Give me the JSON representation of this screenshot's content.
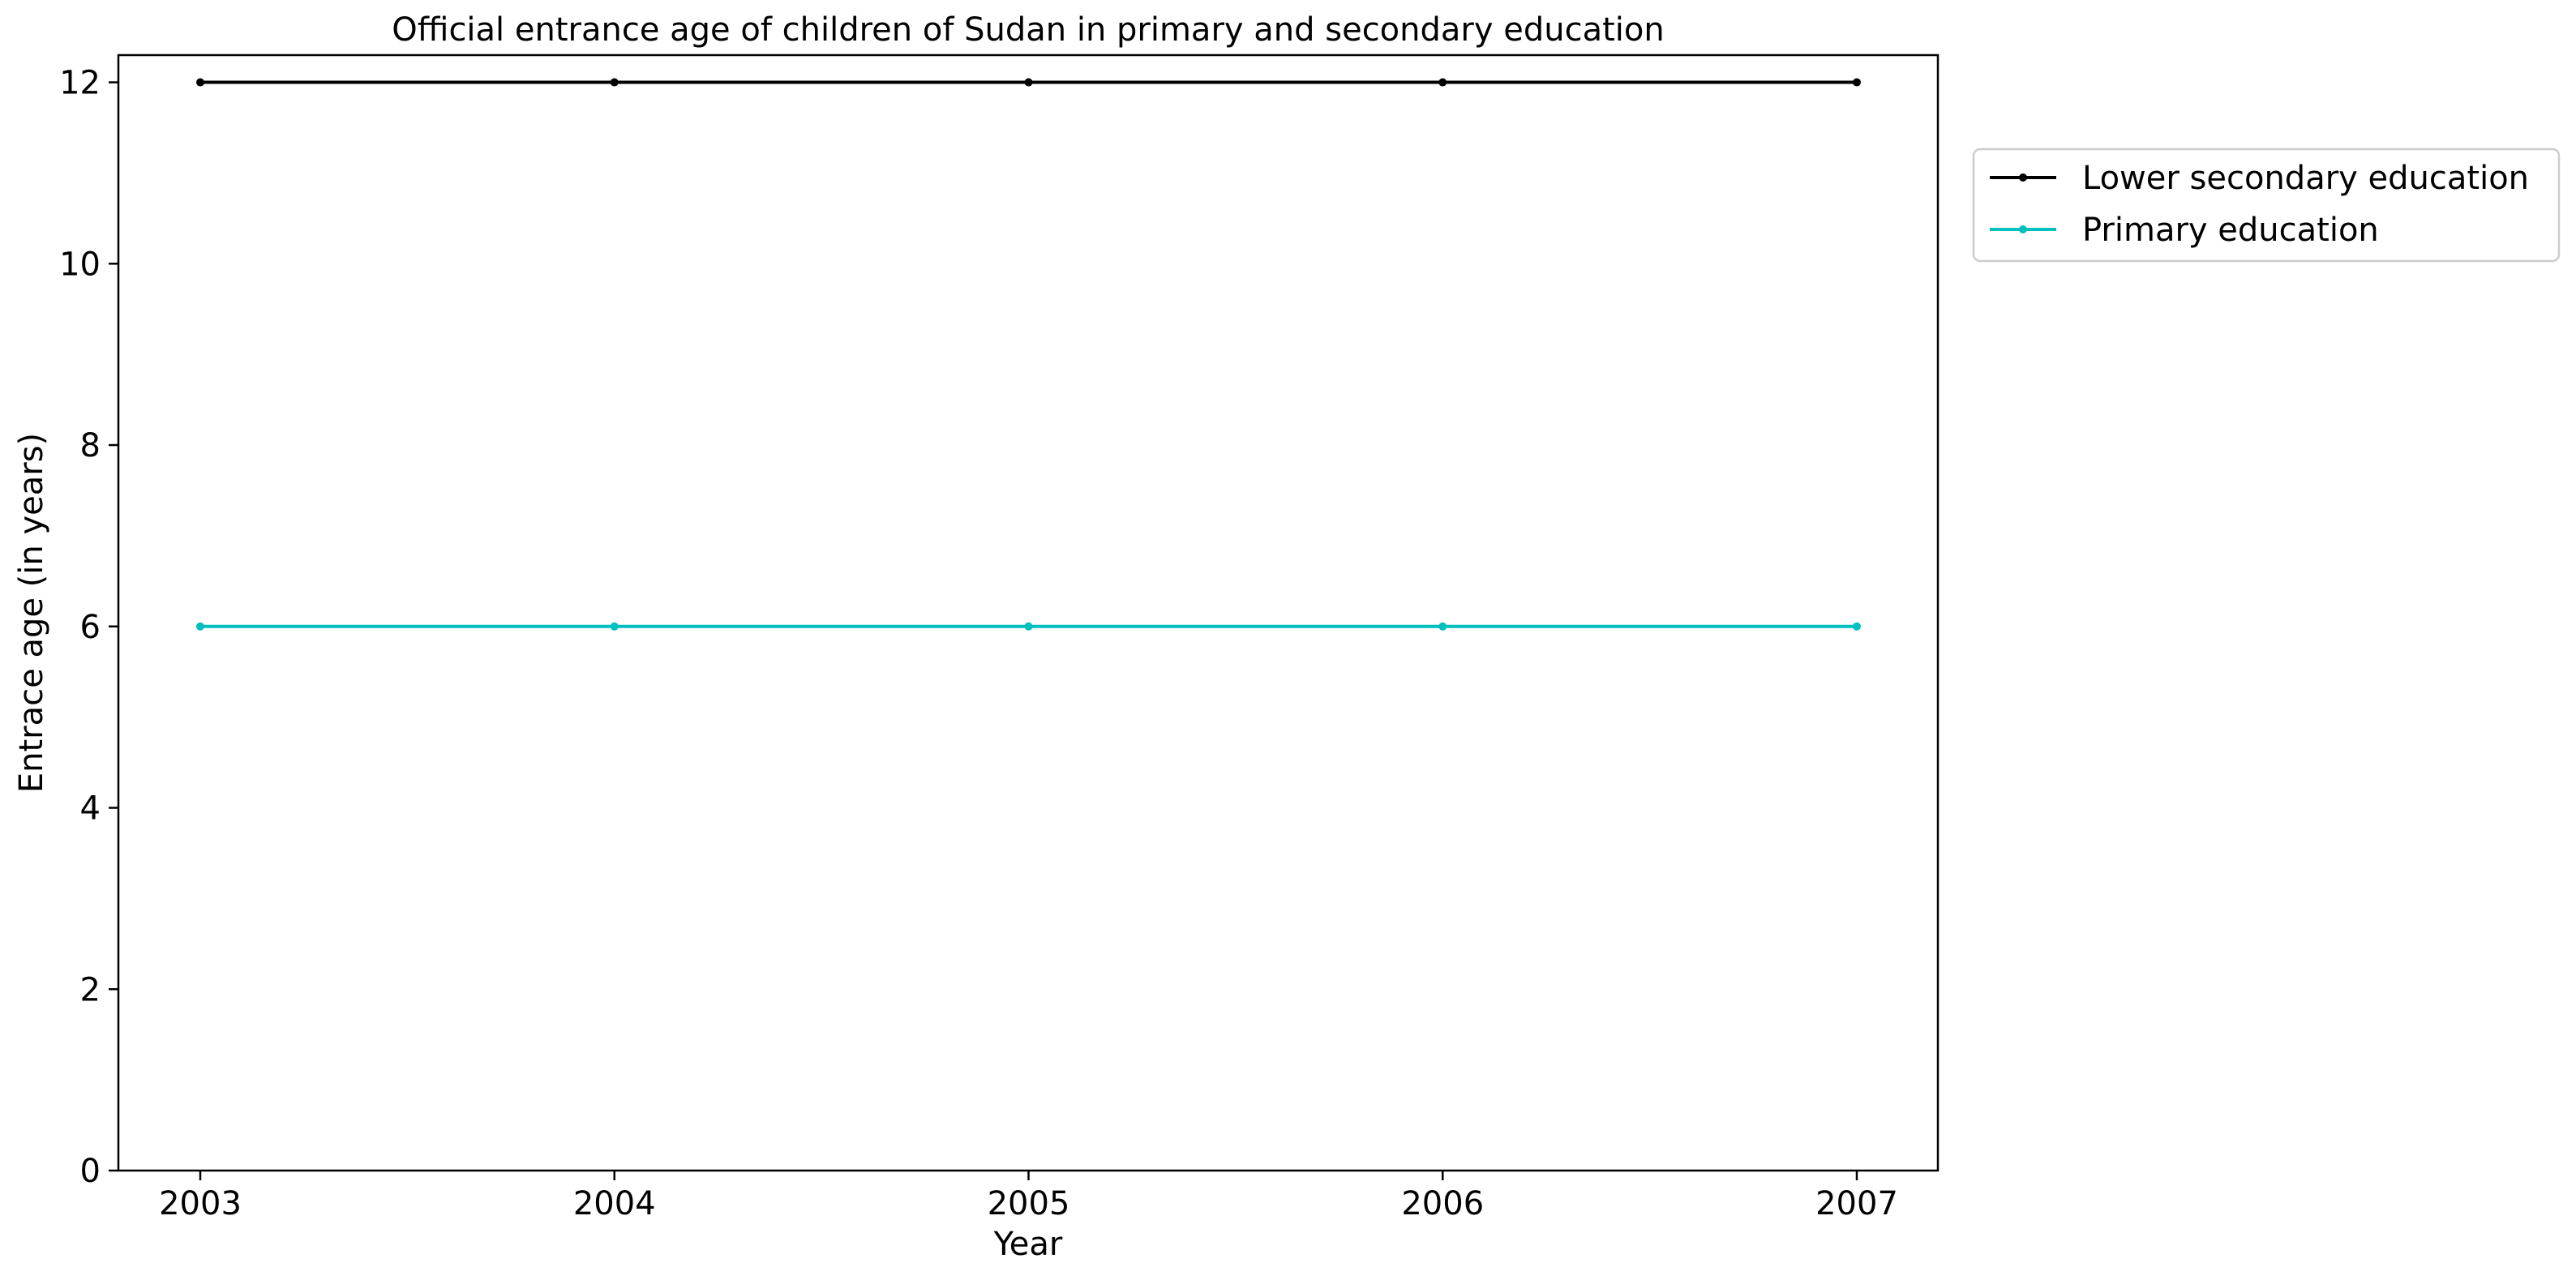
{
  "chart_data": {
    "type": "line",
    "title": "Official entrance age of children of Sudan in primary and secondary education",
    "xlabel": "Year",
    "ylabel": "Entrace age (in  years)",
    "x": [
      "2003",
      "2004",
      "2005",
      "2006",
      "2007"
    ],
    "yticks": [
      "0",
      "2",
      "4",
      "6",
      "8",
      "10",
      "12"
    ],
    "ylim": [
      0,
      12.3
    ],
    "grid": false,
    "legend_position": "outside-top-right",
    "series": [
      {
        "name": "Lower secondary education",
        "values": [
          12,
          12,
          12,
          12,
          12
        ],
        "color": "#000000"
      },
      {
        "name": "Primary education",
        "values": [
          6,
          6,
          6,
          6,
          6
        ],
        "color": "#00bfbf"
      }
    ]
  }
}
